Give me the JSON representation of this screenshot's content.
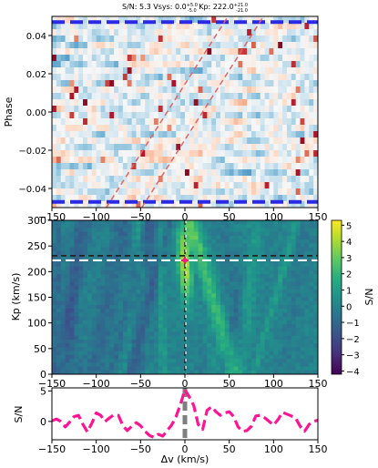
{
  "title_parts": {
    "prefix": "S/N: 5.3 Vsys: 0.0",
    "vsys_sup": "+5.0",
    "vsys_sub": "-5.0",
    "kp_label": " Kp: 222.0",
    "kp_sup": "+21.0",
    "kp_sub": "-21.0"
  },
  "colors": {
    "cyan_line": "#2a2ae6",
    "trail_line": "#e06666",
    "sn_curve": "#ff1493",
    "marker": "#d62728",
    "guide_white": "#ffffff",
    "guide_black": "#222222",
    "vline": "#7f7f7f"
  },
  "chart_data": [
    {
      "type": "heatmap",
      "panel": "phase-velocity map",
      "ylabel": "Phase",
      "xlabel": "",
      "xlim": [
        -150,
        150
      ],
      "ylim": [
        -0.05,
        0.05
      ],
      "xticks": [
        -150,
        -100,
        -50,
        0,
        50,
        100,
        150
      ],
      "yticks": [
        -0.04,
        -0.02,
        0.0,
        0.02,
        0.04
      ],
      "ytick_labels": [
        "−0.04",
        "−0.02",
        "0.00",
        "0.02",
        "0.04"
      ],
      "colormap": "RdBu_r",
      "h_lines": [
        0.047,
        -0.047
      ],
      "planet_trail": {
        "kp": 222.0,
        "offsets": [
          -20,
          20
        ]
      }
    },
    {
      "type": "heatmap",
      "panel": "Kp-Vsys map",
      "ylabel": "Kp (km/s)",
      "xlabel": "",
      "xlim": [
        -150,
        150
      ],
      "ylim": [
        0,
        300
      ],
      "xticks": [
        -150,
        -100,
        -50,
        0,
        50,
        100,
        150
      ],
      "yticks": [
        0,
        50,
        100,
        150,
        200,
        250,
        300
      ],
      "colormap": "viridis",
      "colorbar": {
        "label": "S/N",
        "range": [
          -4.2,
          5.3
        ],
        "ticks": [
          5,
          4,
          3,
          2,
          1,
          0,
          -1,
          -2,
          -3,
          -4
        ]
      },
      "peak": {
        "vsys": 0.0,
        "kp": 222.0,
        "sn": 5.3
      },
      "guides": {
        "kp_white": 222.0,
        "kp_dark": 231.0,
        "vsys": 0.0
      }
    },
    {
      "type": "line",
      "panel": "S/N curve",
      "ylabel": "S/N",
      "xlabel": "Δv (km/s)",
      "xlim": [
        -150,
        150
      ],
      "ylim": [
        -3,
        5.5
      ],
      "xticks": [
        -150,
        -100,
        -50,
        0,
        50,
        100,
        150
      ],
      "yticks": [
        0,
        5
      ],
      "x": [
        -150,
        -145,
        -140,
        -135,
        -130,
        -125,
        -120,
        -115,
        -110,
        -105,
        -100,
        -95,
        -90,
        -85,
        -80,
        -75,
        -70,
        -65,
        -60,
        -55,
        -50,
        -45,
        -40,
        -35,
        -30,
        -25,
        -20,
        -15,
        -10,
        -5,
        0,
        5,
        10,
        15,
        20,
        25,
        30,
        35,
        40,
        45,
        50,
        55,
        60,
        65,
        70,
        75,
        80,
        85,
        90,
        95,
        100,
        105,
        110,
        115,
        120,
        125,
        130,
        135,
        140,
        145,
        150
      ],
      "y": [
        0.1,
        0.4,
        0.0,
        -0.9,
        -0.1,
        0.8,
        1.0,
        -0.5,
        -1.7,
        -0.3,
        1.4,
        1.0,
        0.0,
        0.6,
        1.1,
        1.0,
        -0.7,
        -1.5,
        -0.8,
        -0.2,
        -0.7,
        -1.6,
        -2.3,
        -2.6,
        -2.1,
        -2.4,
        -1.5,
        -0.6,
        0.8,
        2.8,
        5.2,
        4.0,
        2.6,
        -0.5,
        -1.3,
        1.8,
        2.4,
        1.6,
        1.0,
        1.4,
        1.6,
        0.8,
        -0.9,
        -1.6,
        -1.5,
        -0.8,
        0.9,
        1.0,
        0.6,
        0.0,
        -0.6,
        0.3,
        1.5,
        1.2,
        0.9,
        0.5,
        -0.8,
        -1.6,
        -0.5,
        0.0,
        0.2
      ],
      "style": "dashed"
    }
  ]
}
